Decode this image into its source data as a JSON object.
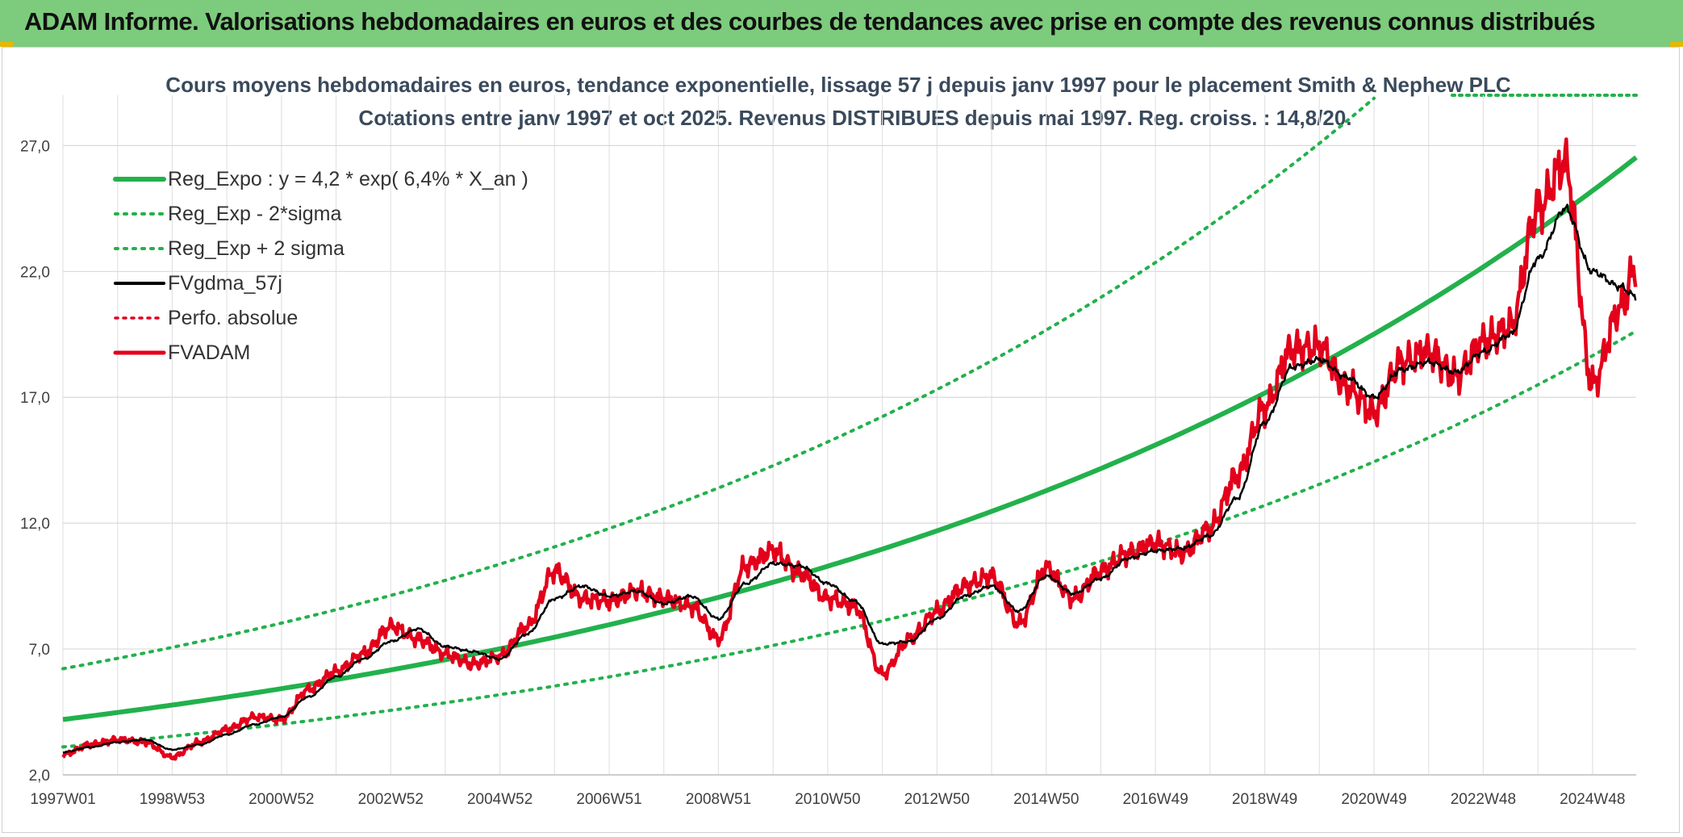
{
  "banner": {
    "title": "ADAM Informe. Valorisations hebdomadaires en euros et des courbes de tendances avec prise en compte des revenus connus distribués",
    "color": "#7dcb7d"
  },
  "chart_data": {
    "type": "line",
    "title": "Cours moyens hebdomadaires en euros, tendance exponentielle, lissage 57 j depuis janv 1997 pour le placement Smith & Nephew PLC",
    "subtitle": "Cotations entre janv 1997 et oct 2025. Revenus DISTRIBUES depuis mai 1997. Reg. croiss. : 14,8/20.",
    "xlabel": "",
    "ylabel": "",
    "xlim": [
      1997.0,
      2025.8
    ],
    "ylim": [
      2.0,
      29.0
    ],
    "y_ticks": [
      "2,0",
      "7,0",
      "12,0",
      "17,0",
      "22,0",
      "27,0"
    ],
    "y_tick_values": [
      2,
      7,
      12,
      17,
      22,
      27
    ],
    "x_ticks": [
      "1997W01",
      "1998W53",
      "2000W52",
      "2002W52",
      "2004W52",
      "2006W51",
      "2008W51",
      "2010W50",
      "2012W50",
      "2014W50",
      "2016W49",
      "2018W49",
      "2020W49",
      "2022W48",
      "2024W48"
    ],
    "x_tick_values": [
      1997.0,
      1999.0,
      2001.0,
      2003.0,
      2005.0,
      2007.0,
      2009.0,
      2011.0,
      2013.0,
      2015.0,
      2017.0,
      2019.0,
      2021.0,
      2023.0,
      2025.0
    ],
    "grid": true,
    "legend_position": "top-left",
    "regression": {
      "a": 4.2,
      "rate": 0.064,
      "sigma_factor_upper": 1.48,
      "sigma_factor_lower": 0.74
    },
    "series": [
      {
        "name": "Reg_Expo : y = 4,2 * exp( 6,4% *  X_an )",
        "color": "#22b14c",
        "style": "solid-thick"
      },
      {
        "name": "Reg_Exp - 2*sigma",
        "color": "#22b14c",
        "style": "dotted"
      },
      {
        "name": "Reg_Exp + 2 sigma",
        "color": "#22b14c",
        "style": "dotted"
      },
      {
        "name": "FVgdma_57j",
        "color": "#000000",
        "style": "solid",
        "x": [
          1997.0,
          1997.5,
          1998.0,
          1998.5,
          1999.0,
          1999.5,
          2000.0,
          2000.5,
          2001.0,
          2001.5,
          2002.0,
          2002.5,
          2003.0,
          2003.5,
          2004.0,
          2004.5,
          2005.0,
          2005.5,
          2006.0,
          2006.5,
          2007.0,
          2007.5,
          2008.0,
          2008.5,
          2009.0,
          2009.5,
          2010.0,
          2010.5,
          2011.0,
          2011.5,
          2012.0,
          2012.5,
          2013.0,
          2013.5,
          2014.0,
          2014.5,
          2015.0,
          2015.5,
          2016.0,
          2016.5,
          2017.0,
          2017.5,
          2018.0,
          2018.5,
          2019.0,
          2019.5,
          2020.0,
          2020.5,
          2021.0,
          2021.5,
          2022.0,
          2022.5,
          2023.0,
          2023.5,
          2024.0,
          2024.5,
          2025.0,
          2025.5,
          2025.8
        ],
        "y": [
          2.9,
          3.1,
          3.3,
          3.4,
          3.0,
          3.2,
          3.6,
          4.0,
          4.3,
          5.1,
          5.9,
          6.6,
          7.3,
          7.8,
          7.1,
          6.9,
          6.6,
          7.6,
          9.0,
          9.5,
          9.1,
          9.3,
          8.8,
          9.1,
          8.2,
          9.6,
          10.4,
          10.3,
          9.6,
          8.9,
          7.2,
          7.3,
          8.2,
          9.1,
          9.5,
          8.5,
          9.9,
          9.2,
          9.8,
          10.6,
          10.9,
          11.0,
          11.5,
          13.0,
          16.0,
          18.2,
          18.5,
          17.8,
          17.0,
          18.1,
          18.4,
          18.0,
          18.8,
          19.5,
          22.5,
          24.5,
          22.0,
          21.4,
          21.0
        ],
        "x_note": "values given as fractional years"
      },
      {
        "name": "Perfo. absolue",
        "color": "#e3001b",
        "style": "dotted"
      },
      {
        "name": "FVADAM",
        "color": "#e3001b",
        "style": "solid-thick",
        "x": [
          1997.0,
          1997.5,
          1998.0,
          1998.5,
          1999.0,
          1999.5,
          2000.0,
          2000.5,
          2001.0,
          2001.5,
          2002.0,
          2002.5,
          2003.0,
          2003.5,
          2004.0,
          2004.5,
          2005.0,
          2005.5,
          2006.0,
          2006.5,
          2007.0,
          2007.5,
          2008.0,
          2008.5,
          2009.0,
          2009.5,
          2010.0,
          2010.5,
          2011.0,
          2011.5,
          2012.0,
          2012.5,
          2013.0,
          2013.5,
          2014.0,
          2014.5,
          2015.0,
          2015.5,
          2016.0,
          2016.5,
          2017.0,
          2017.5,
          2018.0,
          2018.5,
          2019.0,
          2019.5,
          2020.0,
          2020.5,
          2021.0,
          2021.5,
          2022.0,
          2022.5,
          2023.0,
          2023.5,
          2024.0,
          2024.5,
          2025.0,
          2025.5,
          2025.8
        ],
        "y": [
          2.8,
          3.2,
          3.4,
          3.3,
          2.7,
          3.3,
          3.8,
          4.3,
          4.2,
          5.4,
          6.1,
          6.8,
          7.9,
          7.4,
          6.8,
          6.4,
          6.7,
          7.9,
          10.1,
          9.0,
          8.9,
          9.3,
          9.0,
          8.7,
          7.4,
          10.3,
          10.9,
          10.0,
          9.0,
          8.7,
          6.0,
          7.4,
          8.5,
          9.5,
          9.9,
          8.0,
          10.2,
          9.0,
          10.1,
          10.8,
          11.2,
          10.8,
          11.8,
          13.9,
          16.6,
          18.9,
          19.0,
          17.4,
          16.4,
          18.4,
          18.8,
          17.8,
          19.2,
          19.8,
          24.5,
          26.3,
          17.5,
          20.5,
          22.2
        ]
      }
    ]
  }
}
